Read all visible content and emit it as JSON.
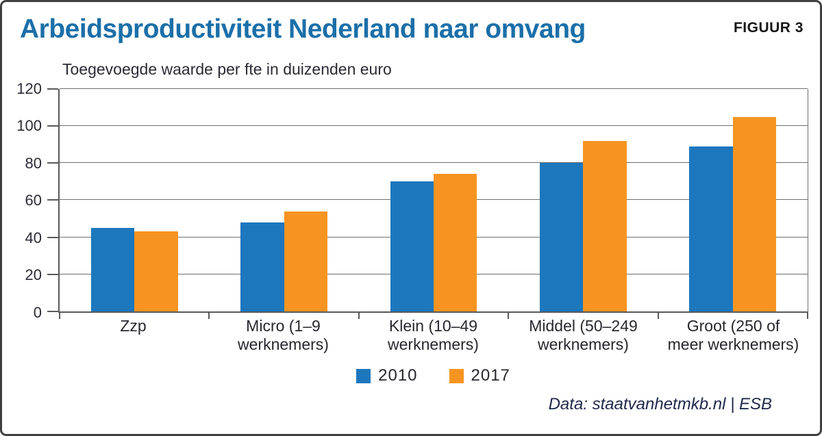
{
  "header": {
    "title": "Arbeidsproductiviteit Nederland naar omvang",
    "figure_label": "FIGUUR 3"
  },
  "subtitle": "Toegevoegde waarde per fte in duizenden euro",
  "footer": {
    "source": "Data: staatvanhetmkb.nl | ESB"
  },
  "colors": {
    "title_blue": "#1b6fa9",
    "series_2010": "#1c77bd",
    "series_2017": "#f79421",
    "axis": "#58595b",
    "grid": "#6e6e6e",
    "text_dark": "#2b2b36",
    "footer_navy": "#21294b",
    "frame_border": "#3f3f41"
  },
  "chart_data": {
    "type": "bar",
    "title": "Arbeidsproductiviteit Nederland naar omvang",
    "subtitle": "Toegevoegde waarde per fte in duizenden euro",
    "categories": [
      "Zzp",
      "Micro (1–9 werknemers)",
      "Klein (10–49 werknemers)",
      "Middel (50–249 werknemers)",
      "Groot (250 of meer werknemers)"
    ],
    "category_label_lines": [
      [
        "Zzp"
      ],
      [
        "Micro (1–9",
        "werknemers)"
      ],
      [
        "Klein (10–49",
        "werknemers)"
      ],
      [
        "Middel (50–249",
        "werknemers)"
      ],
      [
        "Groot (250 of",
        "meer werknemers)"
      ]
    ],
    "series": [
      {
        "name": "2010",
        "color": "#1c77bd",
        "values": [
          45,
          48,
          70,
          80,
          89
        ]
      },
      {
        "name": "2017",
        "color": "#f79421",
        "values": [
          43,
          54,
          74,
          92,
          105
        ]
      }
    ],
    "ylabel": "Toegevoegde waarde per fte in duizenden euro",
    "ylim": [
      0,
      120
    ],
    "yticks": [
      0,
      20,
      40,
      60,
      80,
      100,
      120
    ],
    "grid": true,
    "legend_position": "bottom",
    "source": "Data: staatvanhetmkb.nl | ESB"
  }
}
